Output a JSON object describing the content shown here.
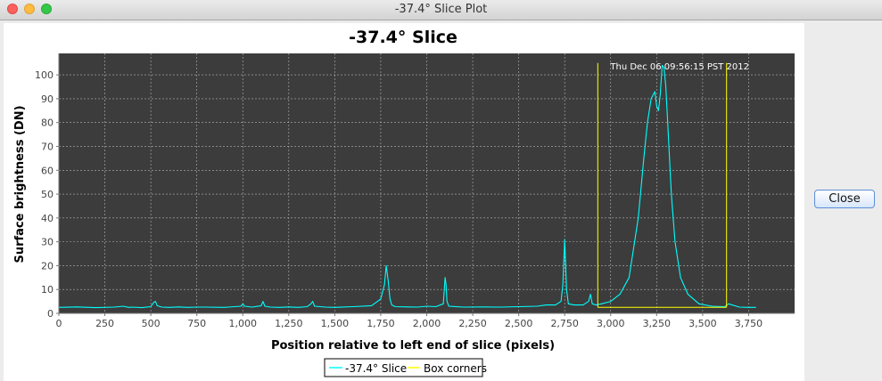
{
  "window": {
    "title": "-37.4° Slice Plot"
  },
  "buttons": {
    "close_label": "Close"
  },
  "colors": {
    "plot_bg": "#3c3c3c",
    "slice_line": "#00ffff",
    "box_line": "#ffff00"
  },
  "chart_data": {
    "type": "line",
    "title": "-37.4° Slice",
    "xlabel": "Position relative to left end of slice (pixels)",
    "ylabel": "Surface brightness (DN)",
    "annotation": "Thu Dec 06 09:56:15 PST 2012",
    "xlim": [
      0,
      4000
    ],
    "ylim": [
      0,
      109
    ],
    "x_ticks": [
      "0",
      "250",
      "500",
      "750",
      "1,000",
      "1,250",
      "1,500",
      "1,750",
      "2,000",
      "2,250",
      "2,500",
      "2,750",
      "3,000",
      "3,250",
      "3,500",
      "3,750"
    ],
    "y_ticks": [
      "0",
      "10",
      "20",
      "30",
      "40",
      "50",
      "60",
      "70",
      "80",
      "90",
      "100"
    ],
    "grid": true,
    "legend_position": "bottom",
    "series": [
      {
        "name": "-37.4° Slice",
        "color": "#00ffff",
        "x": [
          0,
          100,
          200,
          300,
          350,
          380,
          400,
          450,
          500,
          515,
          525,
          535,
          560,
          600,
          650,
          700,
          750,
          800,
          900,
          990,
          1000,
          1010,
          1050,
          1100,
          1110,
          1120,
          1150,
          1200,
          1250,
          1300,
          1350,
          1370,
          1380,
          1390,
          1450,
          1500,
          1600,
          1700,
          1750,
          1770,
          1780,
          1790,
          1800,
          1810,
          1830,
          1900,
          1950,
          2000,
          2050,
          2090,
          2100,
          2105,
          2110,
          2120,
          2200,
          2300,
          2400,
          2500,
          2600,
          2650,
          2700,
          2730,
          2740,
          2750,
          2760,
          2770,
          2800,
          2850,
          2880,
          2890,
          2900,
          2920,
          2950,
          3000,
          3050,
          3100,
          3150,
          3180,
          3200,
          3220,
          3240,
          3250,
          3260,
          3270,
          3280,
          3290,
          3300,
          3310,
          3330,
          3350,
          3380,
          3420,
          3480,
          3550,
          3620,
          3640,
          3700,
          3750,
          3790
        ],
        "y": [
          2.5,
          2.7,
          2.4,
          2.6,
          3,
          2.5,
          2.6,
          2.4,
          2.8,
          4.5,
          5,
          3.2,
          2.6,
          2.5,
          2.7,
          2.5,
          2.6,
          2.6,
          2.5,
          3,
          4,
          3,
          2.6,
          3.2,
          5,
          3,
          2.6,
          2.5,
          2.7,
          2.5,
          2.8,
          4,
          5,
          3,
          2.6,
          2.5,
          2.8,
          3.2,
          6,
          12,
          20,
          14,
          6,
          3.5,
          2.8,
          2.7,
          2.6,
          3,
          2.8,
          4,
          15,
          12,
          5,
          3,
          2.6,
          2.7,
          2.6,
          2.8,
          3,
          3.5,
          3.5,
          5,
          12,
          31,
          10,
          4,
          3.5,
          3.5,
          5,
          8,
          4,
          3.5,
          4,
          5,
          8,
          15,
          40,
          65,
          80,
          90,
          93,
          87,
          85,
          92,
          104,
          103,
          95,
          80,
          50,
          30,
          15,
          8,
          4,
          3,
          2.8,
          4,
          2.6,
          2.5,
          2.5
        ]
      },
      {
        "name": "Box corners",
        "color": "#ffff00",
        "segments": [
          [
            [
              2930,
              105
            ],
            [
              2930,
              2.5
            ]
          ],
          [
            [
              2930,
              2.5
            ],
            [
              3630,
              2.5
            ]
          ],
          [
            [
              3630,
              2.5
            ],
            [
              3630,
              105
            ]
          ]
        ]
      }
    ]
  }
}
